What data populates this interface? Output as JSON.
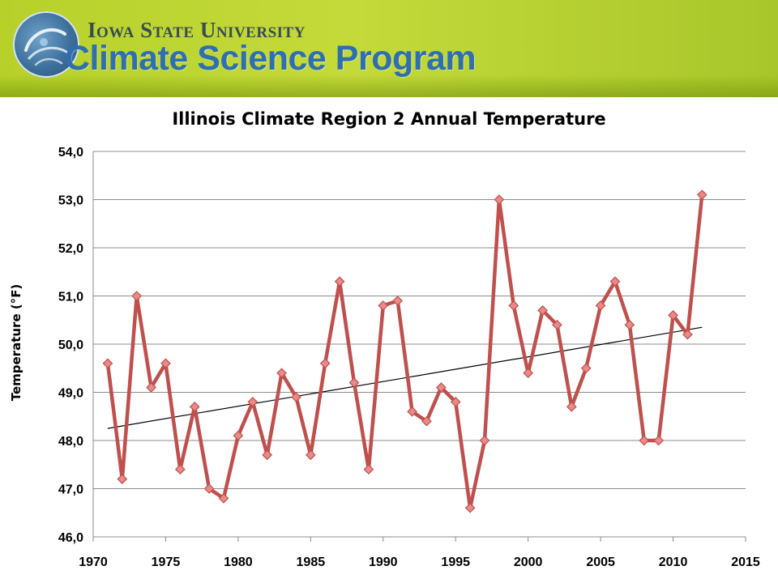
{
  "header": {
    "university": "Iowa State University",
    "program": "Climate Science Program",
    "logo_icon": "globe-swirl-icon",
    "banner_color": "#b7d12a",
    "program_color": "#2f6fb0"
  },
  "chart_data": {
    "type": "line",
    "title": "Illinois Climate Region 2 Annual Temperature",
    "ylabel": "Temperature (°F)",
    "xlabel": "",
    "xlim": [
      1970,
      2015
    ],
    "ylim": [
      46,
      54
    ],
    "x_ticks": [
      "1970",
      "1975",
      "1980",
      "1985",
      "1990",
      "1995",
      "2000",
      "2005",
      "2010",
      "2015"
    ],
    "y_ticks": [
      "46,0",
      "47,0",
      "48,0",
      "49,0",
      "50,0",
      "51,0",
      "52,0",
      "53,0",
      "54,0"
    ],
    "grid": "horizontal",
    "series": [
      {
        "color": "#c0504d",
        "marker_color": "#e88a88",
        "x": [
          1971,
          1972,
          1973,
          1974,
          1975,
          1976,
          1977,
          1978,
          1979,
          1980,
          1981,
          1982,
          1983,
          1984,
          1985,
          1986,
          1987,
          1988,
          1989,
          1990,
          1991,
          1992,
          1993,
          1994,
          1995,
          1996,
          1997,
          1998,
          1999,
          2000,
          2001,
          2002,
          2003,
          2004,
          2005,
          2006,
          2007,
          2008,
          2009,
          2010,
          2011,
          2012
        ],
        "values": [
          49.6,
          47.2,
          51.0,
          49.1,
          49.6,
          47.4,
          48.7,
          47.0,
          46.8,
          48.1,
          48.8,
          47.7,
          49.4,
          48.9,
          47.7,
          49.6,
          51.3,
          49.2,
          47.4,
          50.8,
          50.9,
          48.6,
          48.4,
          49.1,
          48.8,
          46.6,
          48.0,
          53.0,
          50.8,
          49.4,
          50.7,
          50.4,
          48.7,
          49.5,
          50.8,
          51.3,
          50.4,
          48.0,
          48.0,
          50.6,
          50.2,
          53.1
        ]
      }
    ],
    "trendline": {
      "color": "#000000",
      "x": [
        1971,
        2012
      ],
      "values": [
        48.25,
        50.35
      ]
    }
  }
}
